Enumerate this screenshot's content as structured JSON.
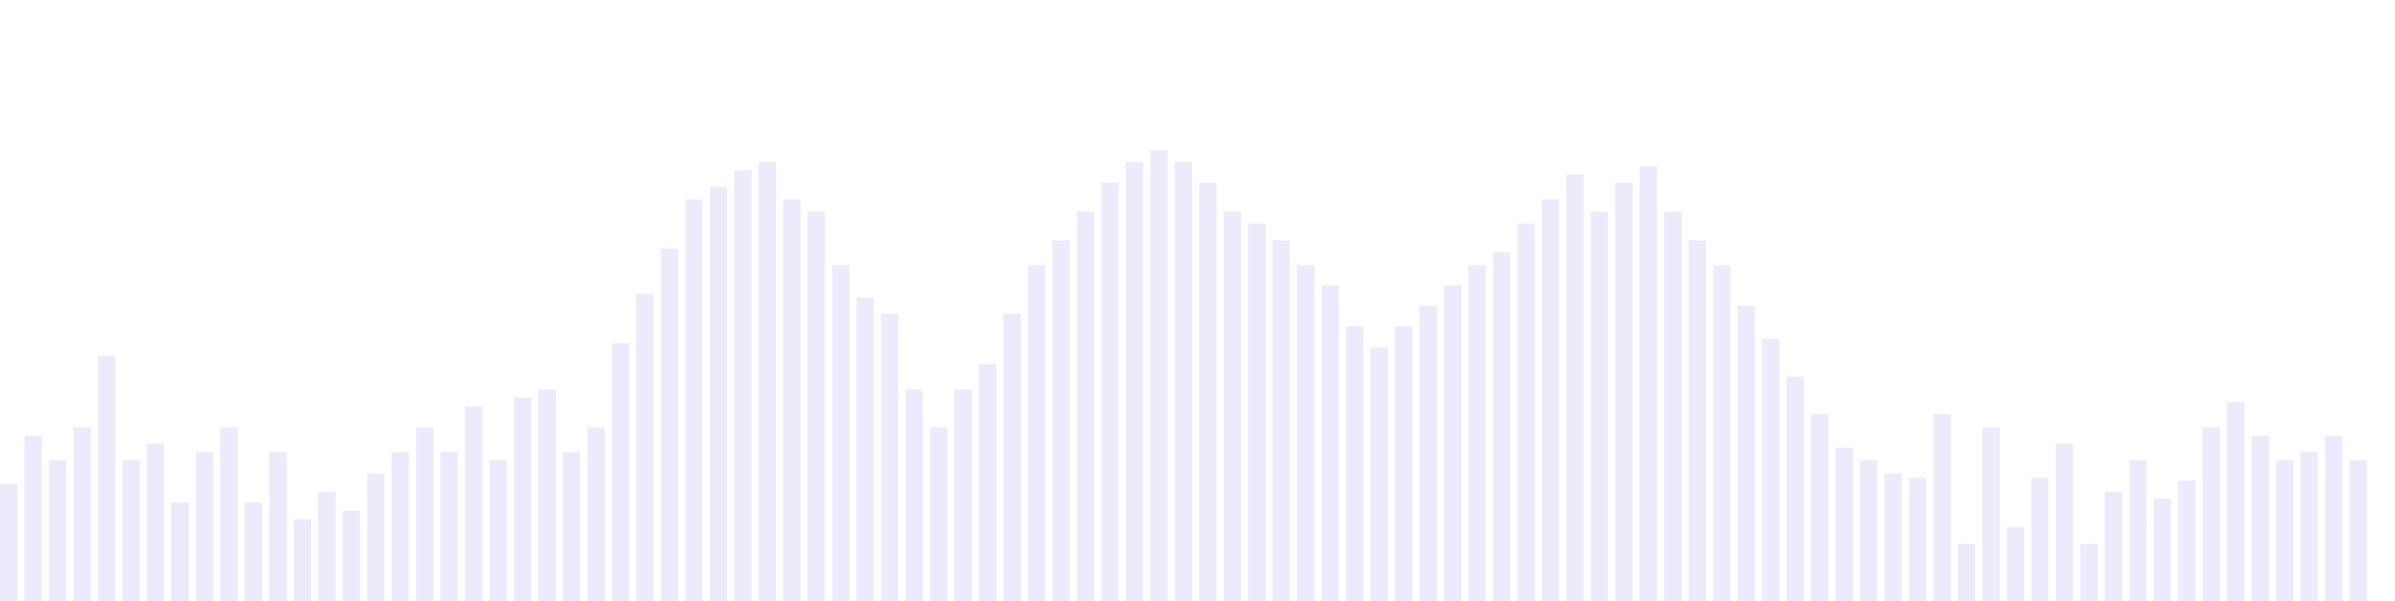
{
  "chart_data": {
    "type": "bar",
    "title": "",
    "xlabel": "",
    "ylabel": "",
    "ylim": [
      0,
      100
    ],
    "grid": false,
    "legend": "none",
    "bar_color": "#ebebfc",
    "values": [
      19.4,
      27.5,
      23.4,
      28.9,
      40.8,
      23.4,
      26.2,
      16.4,
      24.8,
      28.9,
      16.4,
      24.8,
      13.6,
      18.2,
      15.0,
      21.2,
      24.8,
      28.9,
      24.8,
      32.4,
      23.4,
      33.8,
      35.2,
      24.8,
      28.9,
      42.9,
      51.1,
      58.6,
      66.8,
      68.9,
      71.7,
      73.0,
      66.8,
      64.8,
      55.9,
      50.5,
      47.8,
      35.2,
      28.9,
      35.2,
      39.4,
      47.8,
      55.9,
      60.0,
      64.8,
      69.6,
      73.0,
      75.0,
      73.0,
      69.6,
      64.8,
      62.8,
      60.0,
      55.9,
      52.5,
      45.7,
      42.2,
      45.7,
      49.1,
      52.5,
      55.9,
      58.0,
      62.8,
      66.8,
      71.0,
      64.8,
      69.6,
      72.3,
      64.8,
      60.0,
      55.9,
      49.1,
      43.6,
      37.3,
      31.1,
      25.5,
      23.4,
      21.2,
      20.5,
      31.1,
      9.5,
      28.9,
      12.3,
      20.5,
      26.2,
      9.5,
      18.2,
      23.4,
      17.0,
      20.0,
      28.9,
      33.1,
      27.5,
      23.4,
      24.8,
      27.5,
      23.4
    ]
  }
}
